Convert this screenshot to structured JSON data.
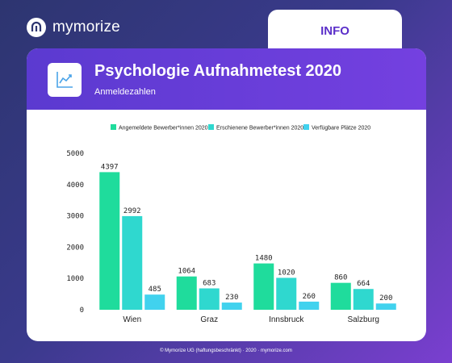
{
  "brand": {
    "name": "mymorize"
  },
  "tab": {
    "label": "INFO"
  },
  "header": {
    "title": "Psychologie Aufnahmetest 2020",
    "subtitle": "Anmeldezahlen",
    "icon": "line-chart-icon"
  },
  "footer": {
    "text": "© Mymorize UG (haftungsbeschränkt) · 2020 · mymorize.com"
  },
  "colors": {
    "accent": "#6a3fd8",
    "series": [
      "#1fdc9c",
      "#2fd8cf",
      "#41d2ee"
    ]
  },
  "chart_data": {
    "type": "bar",
    "title": "",
    "xlabel": "",
    "ylabel": "",
    "categories": [
      "Wien",
      "Graz",
      "Innsbruck",
      "Salzburg"
    ],
    "series": [
      {
        "name": "Angemeldete Bewerber*innen 2020",
        "values": [
          4397,
          1064,
          1480,
          860
        ]
      },
      {
        "name": "Erschienene Bewerber*innen 2020",
        "values": [
          2992,
          683,
          1020,
          664
        ]
      },
      {
        "name": "Verfügbare Plätze 2020",
        "values": [
          485,
          230,
          260,
          200
        ]
      }
    ],
    "ylim": [
      0,
      5000
    ],
    "yticks": [
      0,
      1000,
      2000,
      3000,
      4000,
      5000
    ],
    "legend": "top",
    "grid": false,
    "data_labels": true
  }
}
